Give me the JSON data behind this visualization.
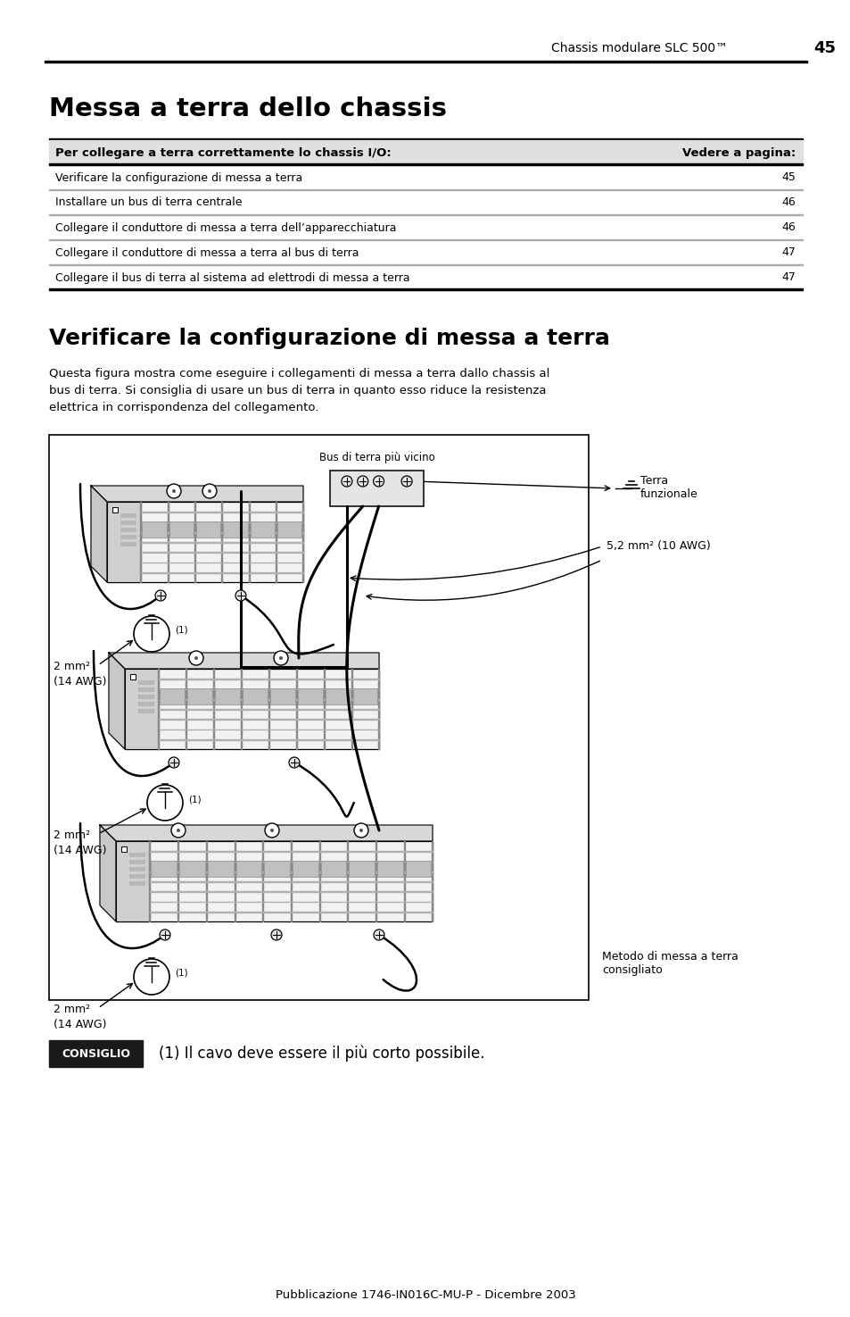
{
  "page_header_text": "Chassis modulare SLC 500™",
  "page_number": "45",
  "title1": "Messa a terra dello chassis",
  "table_header_col1": "Per collegare a terra correttamente lo chassis I/O:",
  "table_header_col2": "Vedere a pagina:",
  "table_rows": [
    [
      "Verificare la configurazione di messa a terra",
      "45"
    ],
    [
      "Installare un bus di terra centrale",
      "46"
    ],
    [
      "Collegare il conduttore di messa a terra dell’apparecchiatura",
      "46"
    ],
    [
      "Collegare il conduttore di messa a terra al bus di terra",
      "47"
    ],
    [
      "Collegare il bus di terra al sistema ad elettrodi di messa a terra",
      "47"
    ]
  ],
  "title2": "Verificare la configurazione di messa a terra",
  "body_text_lines": [
    "Questa figura mostra come eseguire i collegamenti di messa a terra dallo chassis al",
    "bus di terra. Si consiglia di usare un bus di terra in quanto esso riduce la resistenza",
    "elettrica in corrispondenza del collegamento."
  ],
  "bus_label": "Bus di terra più vicino",
  "terra_label1": "Terra",
  "terra_label2": "funzionale",
  "wire_label": "5,2 mm² (10 AWG)",
  "mm2_label1": "2 mm²",
  "mm2_label2": "(14 AWG)",
  "metodo_label1": "Metodo di messa a terra",
  "metodo_label2": "consigliato",
  "consiglio_label": "CONSIGLIO",
  "consiglio_text": "(1) Il cavo deve essere il più corto possibile.",
  "footer_text": "Pubblicazione 1746-IN016C-MU-P - Dicembre 2003",
  "bg_color": "#ffffff"
}
